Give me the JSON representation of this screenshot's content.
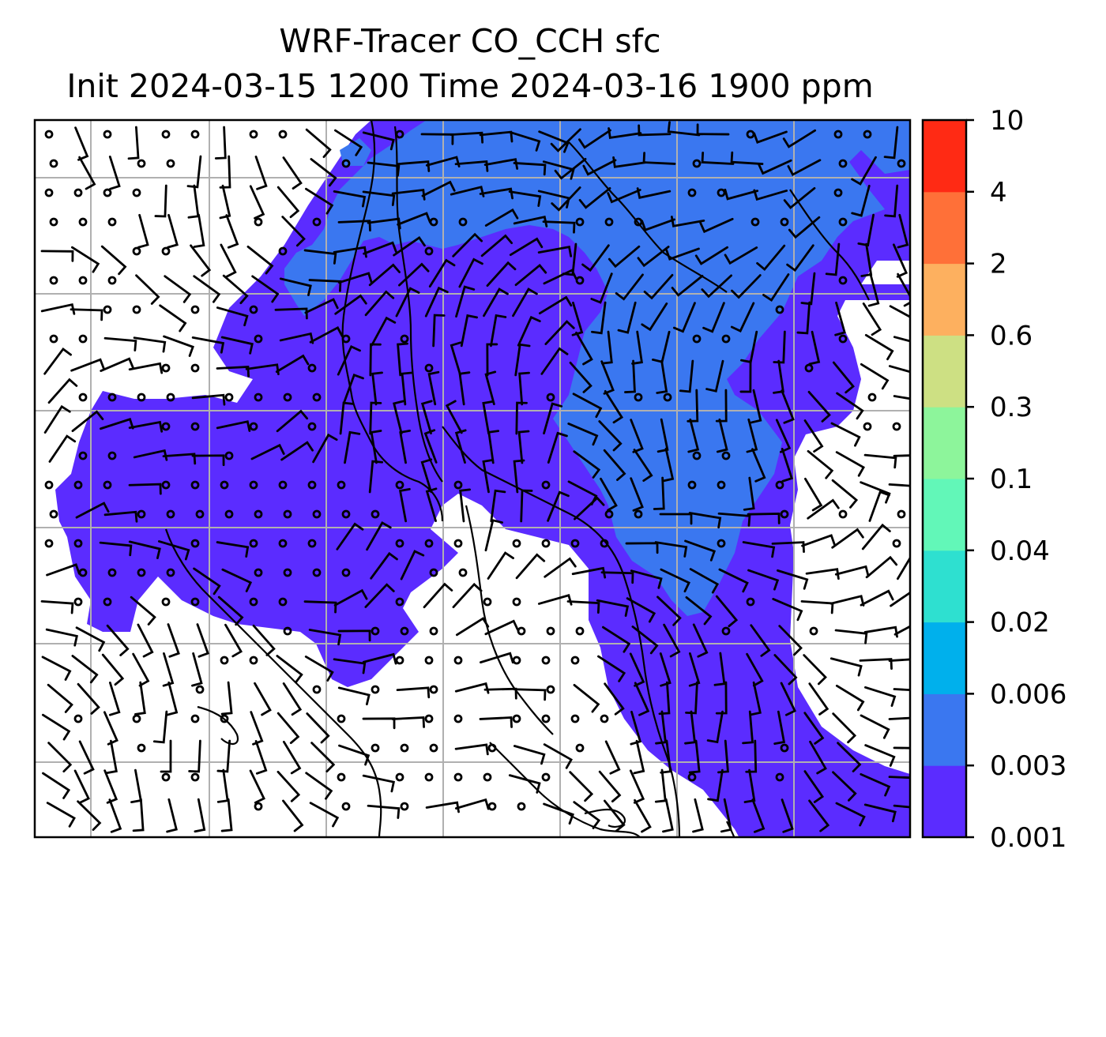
{
  "title": {
    "line1": "WRF-Tracer CO_CCH sfc",
    "line2": "Init 2024-03-15 1200 Time 2024-03-16 1900 ppm"
  },
  "map": {
    "grid_lines": true,
    "grid_columns": 7,
    "grid_rows": 7,
    "background_color": "#ffffff",
    "wind_barbs": true,
    "coastlines": true
  },
  "colorbar": {
    "orientation": "vertical",
    "placement": "right",
    "tick_labels": [
      "0.001",
      "0.003",
      "0.006",
      "0.02",
      "0.04",
      "0.1",
      "0.3",
      "0.6",
      "2",
      "4",
      "10"
    ],
    "colors": [
      "#5b2cff",
      "#3a77f0",
      "#00b0ec",
      "#2ee0d0",
      "#62f7b8",
      "#8df59b",
      "#cde083",
      "#fdb05f",
      "#ff7038",
      "#ff2a14"
    ]
  },
  "contour_levels": {
    "0.001-0.003": "#5b2cff",
    "0.003-0.006": "#3a77f0"
  }
}
